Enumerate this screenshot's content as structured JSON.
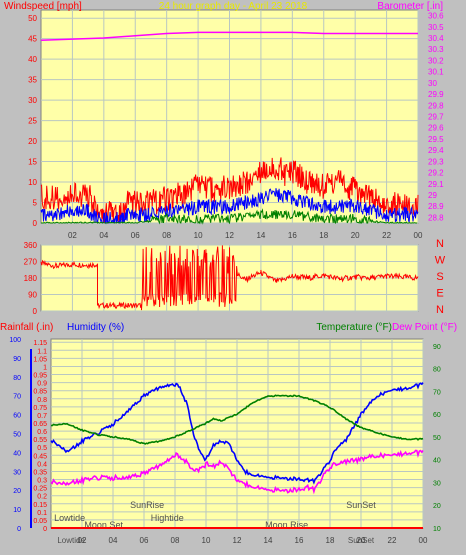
{
  "colors": {
    "panel_bg": "#ffffa8",
    "page_bg": "#c0c0c0",
    "grid": "#b9c7c2",
    "wind_gust": "#ff0000",
    "wind_avg": "#0000ff",
    "wind_min": "#008000",
    "barometer": "#ff00ff",
    "direction": "#ff0000",
    "rainfall": "#ff0000",
    "humidity": "#0000ff",
    "temperature": "#008000",
    "dewpoint": "#ff00ff",
    "axis_text_red": "#ff0000",
    "axis_text_blue": "#0000ff",
    "axis_text_green": "#008000",
    "axis_text_magenta": "#ff00ff",
    "time_text": "#404040",
    "event_text": "#505050"
  },
  "chart_data": [
    {
      "id": "wind",
      "type": "line",
      "title": "24 hour graph day - April 23 2018",
      "left_label": "Windspeed [mph]",
      "right_label": "Barometer [.in]",
      "left_ticks": [
        "0",
        "5",
        "10",
        "15",
        "20",
        "25",
        "30",
        "35",
        "40",
        "45",
        "50"
      ],
      "right_ticks": [
        "28.8",
        "28.9",
        "29",
        "29.1",
        "29.2",
        "29.3",
        "29.4",
        "29.5",
        "29.6",
        "29.7",
        "29.8",
        "29.9",
        "30",
        "30.1",
        "30.2",
        "30.3",
        "30.4",
        "30.5",
        "30.6"
      ],
      "x_ticks": [
        "02",
        "04",
        "06",
        "08",
        "10",
        "12",
        "14",
        "16",
        "18",
        "20",
        "22",
        "00"
      ],
      "xlim": [
        0,
        24
      ],
      "ylim_left": [
        0,
        52
      ],
      "ylim_right": [
        28.75,
        30.65
      ],
      "grid": true,
      "series": [
        {
          "name": "",
          "kind": "wind_gust",
          "x": [
            0,
            1,
            2,
            3,
            3.6,
            5.2,
            5.5,
            6,
            7,
            8,
            9,
            10,
            11,
            12,
            13,
            14,
            15,
            15.5,
            16,
            17,
            18,
            19,
            20,
            21,
            22,
            23,
            24
          ],
          "y": [
            6,
            6,
            7,
            7,
            3,
            2,
            5,
            5,
            5,
            6,
            7,
            9,
            8,
            9,
            10,
            12,
            14,
            12,
            13,
            10,
            9,
            10,
            8,
            6,
            5,
            4,
            4
          ]
        },
        {
          "name": "",
          "kind": "wind_avg",
          "x": [
            0,
            1,
            2,
            3,
            3.6,
            5.2,
            5.5,
            6,
            7,
            8,
            9,
            10,
            11,
            12,
            13,
            14,
            15,
            16,
            17,
            18,
            19,
            20,
            21,
            22,
            23,
            24
          ],
          "y": [
            2,
            2,
            3,
            3,
            1,
            1,
            2,
            2,
            2,
            3,
            3,
            4,
            4,
            4,
            5,
            6,
            7,
            6,
            5,
            4,
            4,
            4,
            3,
            2,
            2,
            2
          ]
        },
        {
          "name": "",
          "kind": "wind_min",
          "x": [
            0,
            2,
            4,
            6,
            8,
            10,
            12,
            14,
            16,
            18,
            20,
            22,
            24
          ],
          "y": [
            0,
            0,
            0,
            0,
            1,
            1,
            1,
            2,
            2,
            1,
            1,
            0,
            0
          ]
        },
        {
          "name": "",
          "kind": "barometer",
          "axis": "right",
          "x": [
            0,
            2,
            4,
            6,
            8,
            10,
            12,
            14,
            16,
            18,
            20,
            22,
            24
          ],
          "y": [
            30.38,
            30.39,
            30.4,
            30.42,
            30.44,
            30.45,
            30.45,
            30.45,
            30.45,
            30.44,
            30.44,
            30.44,
            30.44
          ]
        }
      ]
    },
    {
      "id": "direction",
      "type": "line",
      "left_ticks": [
        "0",
        "90",
        "180",
        "270",
        "360"
      ],
      "right_labels": [
        "N",
        "W",
        "S",
        "E",
        "N"
      ],
      "x_ticks": [
        "02",
        "04",
        "06",
        "08",
        "10",
        "12",
        "14",
        "16",
        "18",
        "20",
        "22",
        "00"
      ],
      "xlim": [
        0,
        24
      ],
      "ylim": [
        0,
        360
      ],
      "grid": true,
      "series": [
        {
          "name": "",
          "kind": "direction",
          "x": [
            0,
            1,
            2,
            3,
            3.6,
            3.6,
            6.4,
            6.4,
            6.5,
            7,
            7.5,
            8,
            8.5,
            9,
            9.5,
            10,
            10.5,
            11,
            11.5,
            12,
            12.5,
            13,
            14,
            15,
            16,
            17,
            18,
            19,
            20,
            21,
            22,
            23,
            24
          ],
          "y": [
            260,
            245,
            255,
            250,
            255,
            30,
            30,
            5,
            200,
            10,
            250,
            40,
            330,
            20,
            300,
            10,
            340,
            30,
            310,
            150,
            200,
            170,
            210,
            160,
            190,
            180,
            195,
            175,
            185,
            180,
            190,
            185,
            180
          ]
        }
      ]
    },
    {
      "id": "climate",
      "type": "line",
      "left_label_rain": "Rainfall (.in)",
      "left_label_humidity": "Humidity (%)",
      "right_label_temp": "Temperature (°F)",
      "right_label_dew": "Dew Point (°F)",
      "humidity_ticks": [
        "0",
        "10",
        "20",
        "30",
        "40",
        "50",
        "60",
        "70",
        "80",
        "90",
        "100"
      ],
      "rain_ticks": [
        "0",
        "0.05",
        "0.1",
        "0.15",
        "0.2",
        "0.25",
        "0.3",
        "0.35",
        "0.4",
        "0.45",
        "0.5",
        "0.55",
        "0.6",
        "0.65",
        "0.7",
        "0.75",
        "0.8",
        "0.85",
        "0.9",
        "0.95",
        "1",
        "1.05",
        "1.1",
        "1.15"
      ],
      "temp_ticks": [
        "10",
        "20",
        "30",
        "40",
        "50",
        "60",
        "70",
        "80",
        "90"
      ],
      "x_ticks": [
        "02",
        "04",
        "06",
        "08",
        "10",
        "12",
        "14",
        "16",
        "18",
        "20",
        "22",
        "00"
      ],
      "xlim": [
        0,
        24
      ],
      "ylim_humidity": [
        0,
        100
      ],
      "ylim_rain": [
        0,
        1.17
      ],
      "ylim_temp": [
        10,
        93
      ],
      "grid": true,
      "events": [
        {
          "label": "Lowtide",
          "x": 1.2,
          "row": "upper"
        },
        {
          "label": "Moon Set",
          "x": 3.4,
          "row": "middle"
        },
        {
          "label": "SunRise",
          "x": 6.2,
          "row": "top"
        },
        {
          "label": "Hightide",
          "x": 7.5,
          "row": "upper"
        },
        {
          "label": "Moon Rise",
          "x": 15.2,
          "row": "middle"
        },
        {
          "label": "SunSet",
          "x": 20.0,
          "row": "top"
        }
      ],
      "bottom_events": [
        {
          "label": "Lowtide",
          "x": 1.3
        },
        {
          "label": "SunSet",
          "x": 20.0
        }
      ],
      "series": [
        {
          "name": "",
          "kind": "rainfall",
          "axis": "rain",
          "x": [
            0,
            24
          ],
          "y": [
            0,
            0
          ]
        },
        {
          "name": "",
          "kind": "humidity",
          "axis": "humidity",
          "x": [
            0,
            0.5,
            1,
            1.5,
            2,
            3,
            4,
            5,
            6,
            7,
            7.8,
            8.3,
            8.8,
            9.2,
            9.6,
            10,
            10.5,
            11,
            11.5,
            12,
            12.5,
            13,
            14,
            15,
            16,
            17,
            17.5,
            18,
            18.5,
            19,
            20,
            21,
            22,
            23,
            24
          ],
          "y": [
            46,
            44,
            41,
            43,
            46,
            50,
            55,
            62,
            70,
            74,
            76,
            75,
            65,
            50,
            40,
            36,
            44,
            46,
            44,
            36,
            30,
            28,
            27,
            26,
            26,
            25,
            30,
            36,
            43,
            46,
            60,
            70,
            73,
            74,
            76
          ]
        },
        {
          "name": "",
          "kind": "temperature",
          "axis": "temp",
          "x": [
            0,
            1,
            2,
            3,
            4,
            5,
            6,
            7,
            8,
            9,
            10,
            10.5,
            11,
            12,
            13,
            14,
            15,
            16,
            17,
            18,
            19,
            20,
            21,
            22,
            23,
            24
          ],
          "y": [
            55,
            56,
            53,
            51,
            50,
            49,
            47,
            48,
            50,
            53,
            56,
            58,
            57,
            60,
            65,
            68,
            68,
            68,
            66,
            63,
            58,
            54,
            52,
            50,
            49,
            49
          ]
        },
        {
          "name": "",
          "kind": "dewpoint",
          "axis": "temp",
          "x": [
            0,
            1,
            2,
            3,
            4,
            5,
            6,
            7,
            8,
            8.5,
            9,
            9.5,
            10,
            10.5,
            11,
            12,
            13,
            14,
            15,
            16,
            16.5,
            17,
            17.5,
            18,
            19,
            20,
            21,
            22,
            23,
            24
          ],
          "y": [
            30,
            30,
            31,
            32,
            32,
            32,
            34,
            37,
            42,
            41,
            37,
            35,
            38,
            37,
            39,
            31,
            28,
            27,
            26,
            27,
            28,
            27,
            32,
            37,
            39,
            40,
            42,
            42,
            43,
            43
          ]
        }
      ]
    }
  ]
}
